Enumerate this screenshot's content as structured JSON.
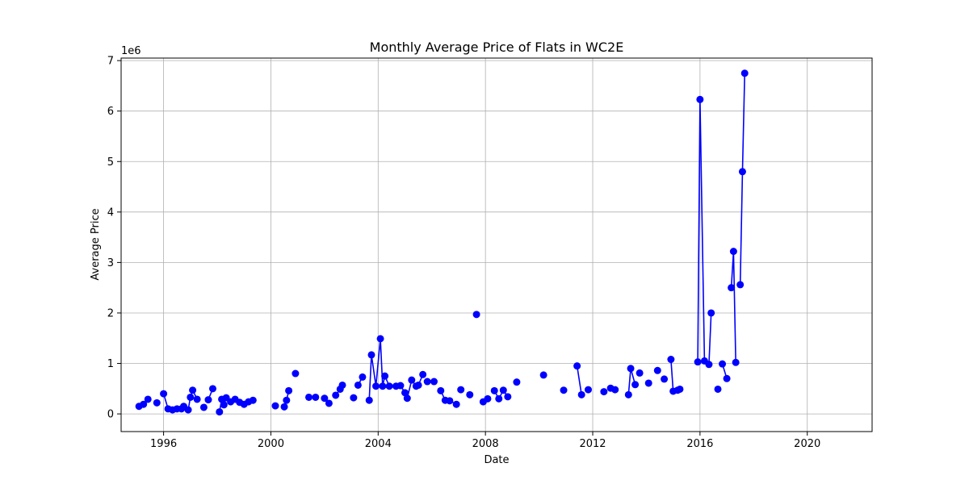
{
  "chart_data": {
    "type": "line",
    "title": "Monthly Average Price of Flats in WC2E",
    "xlabel": "Date",
    "ylabel": "Average Price",
    "y_scale_label": "1e6",
    "xlim": [
      "1994-06-01",
      "2022-06-01"
    ],
    "ylim": [
      -0.35,
      7.05
    ],
    "x_ticks": [
      "1996",
      "2000",
      "2004",
      "2008",
      "2012",
      "2016",
      "2020"
    ],
    "y_ticks": [
      "0",
      "1",
      "2",
      "3",
      "4",
      "5",
      "6",
      "7"
    ],
    "grid": true,
    "series_color": "#0000ff",
    "series": [
      {
        "segments": [
          [
            [
              "1995-02-01",
              0.15
            ],
            [
              "1995-04-01",
              0.19
            ],
            [
              "1995-06-01",
              0.29
            ]
          ],
          [
            [
              "1995-10-01",
              0.22
            ]
          ],
          [
            [
              "1996-01-01",
              0.4
            ],
            [
              "1996-03-01",
              0.1
            ],
            [
              "1996-05-01",
              0.08
            ],
            [
              "1996-07-01",
              0.1
            ]
          ],
          [
            [
              "1996-09-01",
              0.1
            ],
            [
              "1996-10-01",
              0.15
            ],
            [
              "1996-12-01",
              0.08
            ],
            [
              "1997-01-01",
              0.33
            ],
            [
              "1997-02-01",
              0.47
            ],
            [
              "1997-04-01",
              0.29
            ]
          ],
          [
            [
              "1997-07-01",
              0.13
            ]
          ],
          [
            [
              "1997-09-01",
              0.28
            ],
            [
              "1997-11-01",
              0.5
            ]
          ],
          [
            [
              "1998-02-01",
              0.04
            ],
            [
              "1998-03-01",
              0.29
            ],
            [
              "1998-04-01",
              0.18
            ],
            [
              "1998-05-01",
              0.32
            ],
            [
              "1998-07-01",
              0.24
            ],
            [
              "1998-09-01",
              0.29
            ],
            [
              "1998-11-01",
              0.23
            ],
            [
              "1999-01-01",
              0.19
            ],
            [
              "1999-03-01",
              0.24
            ],
            [
              "1999-05-01",
              0.27
            ]
          ],
          [
            [
              "2000-03-01",
              0.16
            ]
          ],
          [
            [
              "2000-07-01",
              0.14
            ],
            [
              "2000-08-01",
              0.27
            ],
            [
              "2000-09-01",
              0.46
            ]
          ],
          [
            [
              "2000-12-01",
              0.8
            ]
          ],
          [
            [
              "2001-06-01",
              0.33
            ],
            [
              "2001-09-01",
              0.33
            ]
          ],
          [
            [
              "2002-01-01",
              0.31
            ],
            [
              "2002-03-01",
              0.21
            ]
          ],
          [
            [
              "2002-06-01",
              0.37
            ],
            [
              "2002-08-01",
              0.49
            ],
            [
              "2002-09-01",
              0.57
            ]
          ],
          [
            [
              "2003-02-01",
              0.32
            ]
          ],
          [
            [
              "2003-04-01",
              0.57
            ],
            [
              "2003-06-01",
              0.73
            ]
          ],
          [
            [
              "2003-09-01",
              0.27
            ],
            [
              "2003-10-01",
              1.17
            ],
            [
              "2003-12-01",
              0.55
            ],
            [
              "2004-02-01",
              1.49
            ],
            [
              "2004-03-01",
              0.55
            ],
            [
              "2004-04-01",
              0.75
            ],
            [
              "2004-06-01",
              0.55
            ]
          ],
          [
            [
              "2004-09-01",
              0.55
            ],
            [
              "2004-11-01",
              0.56
            ],
            [
              "2005-01-01",
              0.42
            ],
            [
              "2005-02-01",
              0.31
            ],
            [
              "2005-04-01",
              0.67
            ],
            [
              "2005-06-01",
              0.55
            ],
            [
              "2005-07-01",
              0.57
            ],
            [
              "2005-09-01",
              0.78
            ]
          ],
          [
            [
              "2005-11-01",
              0.64
            ],
            [
              "2006-02-01",
              0.64
            ]
          ],
          [
            [
              "2006-05-01",
              0.46
            ],
            [
              "2006-07-01",
              0.27
            ],
            [
              "2006-09-01",
              0.26
            ],
            [
              "2006-12-01",
              0.19
            ]
          ],
          [
            [
              "2007-02-01",
              0.48
            ]
          ],
          [
            [
              "2007-06-01",
              0.38
            ]
          ],
          [
            [
              "2007-09-01",
              1.97
            ]
          ],
          [
            [
              "2007-12-01",
              0.24
            ],
            [
              "2008-02-01",
              0.3
            ]
          ],
          [
            [
              "2008-05-01",
              0.46
            ],
            [
              "2008-07-01",
              0.3
            ],
            [
              "2008-09-01",
              0.47
            ],
            [
              "2008-11-01",
              0.34
            ]
          ],
          [
            [
              "2009-03-01",
              0.63
            ]
          ],
          [
            [
              "2010-03-01",
              0.77
            ]
          ],
          [
            [
              "2010-12-01",
              0.47
            ]
          ],
          [
            [
              "2011-06-01",
              0.95
            ],
            [
              "2011-08-01",
              0.38
            ]
          ],
          [
            [
              "2011-11-01",
              0.48
            ]
          ],
          [
            [
              "2012-06-01",
              0.44
            ]
          ],
          [
            [
              "2012-09-01",
              0.51
            ],
            [
              "2012-11-01",
              0.48
            ]
          ],
          [
            [
              "2013-05-01",
              0.38
            ],
            [
              "2013-06-01",
              0.9
            ],
            [
              "2013-08-01",
              0.58
            ]
          ],
          [
            [
              "2013-10-01",
              0.81
            ]
          ],
          [
            [
              "2014-02-01",
              0.61
            ]
          ],
          [
            [
              "2014-06-01",
              0.86
            ]
          ],
          [
            [
              "2014-09-01",
              0.69
            ]
          ],
          [
            [
              "2014-12-01",
              1.08
            ],
            [
              "2015-01-01",
              0.45
            ],
            [
              "2015-03-01",
              0.47
            ],
            [
              "2015-04-01",
              0.49
            ]
          ],
          [
            [
              "2015-12-01",
              1.03
            ],
            [
              "2016-01-01",
              6.23
            ],
            [
              "2016-03-01",
              1.05
            ],
            [
              "2016-05-01",
              0.98
            ],
            [
              "2016-06-01",
              2.0
            ]
          ],
          [
            [
              "2016-09-01",
              0.49
            ]
          ],
          [
            [
              "2016-11-01",
              0.99
            ],
            [
              "2017-01-01",
              0.7
            ]
          ],
          [
            [
              "2017-03-01",
              2.5
            ],
            [
              "2017-04-01",
              3.22
            ],
            [
              "2017-05-01",
              1.02
            ]
          ],
          [
            [
              "2017-07-01",
              2.56
            ],
            [
              "2017-08-01",
              4.8
            ],
            [
              "2017-09-01",
              6.75
            ]
          ]
        ]
      }
    ]
  }
}
